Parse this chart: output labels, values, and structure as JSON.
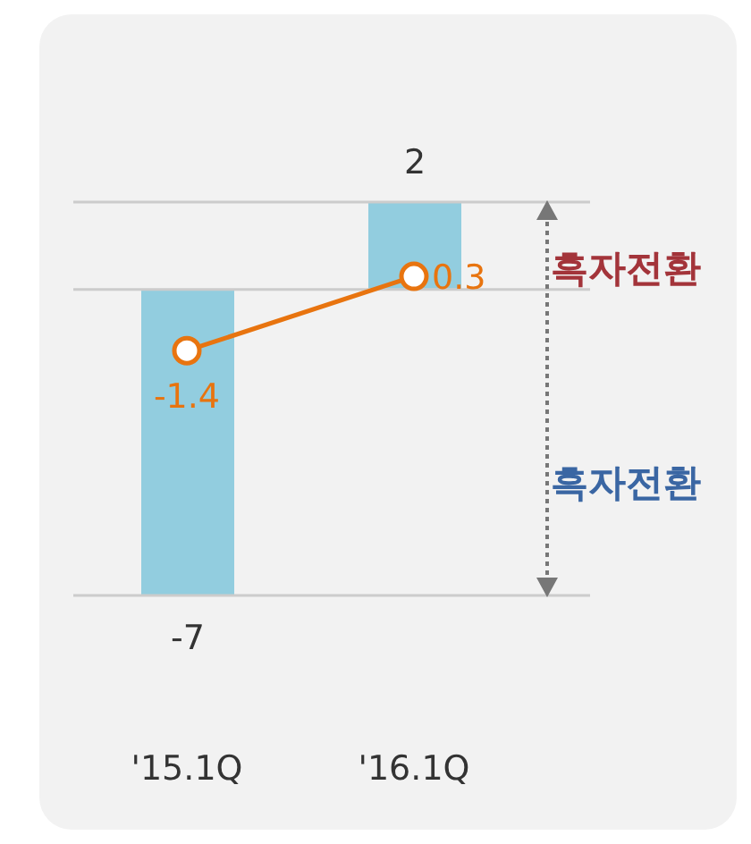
{
  "chart_data": {
    "type": "bar",
    "categories": [
      "'15.1Q",
      "'16.1Q"
    ],
    "series": [
      {
        "color": "#92cddf",
        "values": [
          -7,
          2
        ]
      },
      {
        "type": "line",
        "color": "#e8740f",
        "values": [
          -1.4,
          0.3
        ],
        "marker": "circle"
      }
    ],
    "data_labels": true,
    "ref_lines": [
      {
        "axis": "y",
        "value": 0,
        "color": "#cccccc"
      },
      {
        "axis": "y",
        "value": -7,
        "color": "#cccccc"
      },
      {
        "axis": "y",
        "value": 2,
        "color": "#cccccc"
      }
    ],
    "annotations": [
      "흑자전환",
      "흑자전환"
    ]
  }
}
